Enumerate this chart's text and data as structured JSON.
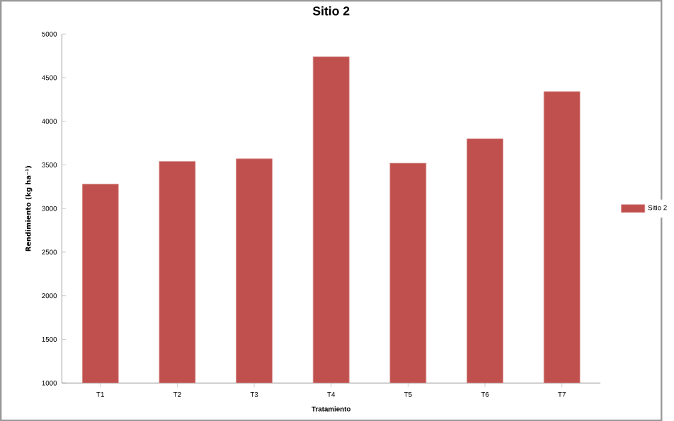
{
  "chart_data": {
    "type": "bar",
    "title": "Sitio 2",
    "xlabel": "Tratamiento",
    "ylabel": "Rendimiento (kg ha⁻¹)",
    "categories": [
      "T1",
      "T2",
      "T3",
      "T4",
      "T5",
      "T6",
      "T7"
    ],
    "series": [
      {
        "name": "Sitio 2",
        "color": "#c0504d",
        "values": [
          3280,
          3540,
          3570,
          4740,
          3520,
          3800,
          4340
        ]
      }
    ],
    "ylim": [
      1000,
      5000
    ],
    "yticks": [
      1000,
      1500,
      2000,
      2500,
      3000,
      3500,
      4000,
      4500,
      5000
    ],
    "grid": false,
    "legend": "right"
  }
}
